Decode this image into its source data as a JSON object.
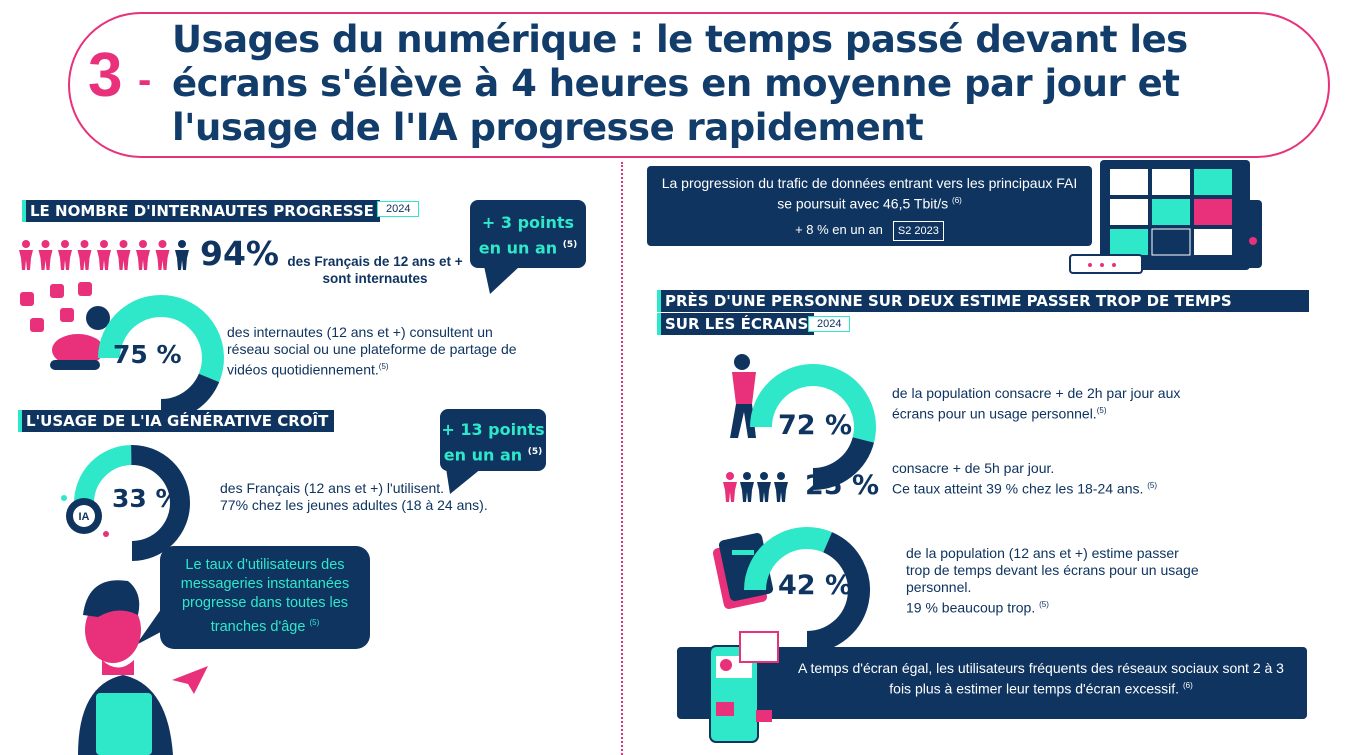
{
  "header": {
    "number": "3",
    "dash": "-",
    "title": "Usages du numérique : le temps passé devant les écrans s'élève à 4 heures en moyenne par jour et l'usage de l'IA progresse rapidement"
  },
  "internautes": {
    "heading": "LE NOMBRE D'INTERNAUTES PROGRESSE",
    "year": "2024",
    "pct": "94%",
    "pct_label": "des Français de 12 ans et + sont internautes",
    "callout": "+ 3 points en un an",
    "callout_note": "(5)",
    "icons_total": 9,
    "icons_highlighted": 8,
    "social_pct": "75 %",
    "social_value": 0.75,
    "social_label": "des internautes (12 ans et +) consultent un réseau social ou une plateforme de partage de vidéos quotidiennement.",
    "social_note": "(5)"
  },
  "ia": {
    "heading": "L'USAGE DE L'IA GÉNÉRATIVE CROÎT",
    "callout": "+ 13 points en un an",
    "callout_note": "(5)",
    "pct": "33 %",
    "value": 0.33,
    "label_line1": "des Français (12 ans et +) l'utilisent.",
    "label_line2": "77% chez les jeunes adultes (18 à 24 ans).",
    "icon_text": "IA"
  },
  "messagerie": {
    "bubble": "Le taux d'utilisateurs des messageries instantanées progresse dans toutes les tranches d'âge",
    "note": "(5)"
  },
  "trafic": {
    "text": "La progression du trafic de données entrant vers les principaux FAI se poursuit avec 46,5 Tbit/s",
    "note": "(6)",
    "growth": "+ 8 % en un an",
    "period": "S2 2023"
  },
  "ecrans": {
    "heading_line1": "PRÈS D'UNE PERSONNE SUR DEUX ESTIME PASSER TROP DE TEMPS",
    "heading_line2": "SUR LES ÉCRANS",
    "year": "2024",
    "stat1_pct": "72 %",
    "stat1_value": 0.72,
    "stat1_label": "de la population consacre + de 2h par jour aux écrans pour un usage personnel.",
    "stat1_note": "(5)",
    "stat2_pct": "25 %",
    "stat2_icons_total": 4,
    "stat2_icons_highlighted": 1,
    "stat2_line1": "consacre + de 5h par jour.",
    "stat2_line2": "Ce taux atteint 39 % chez les 18-24 ans.",
    "stat2_note": "(5)",
    "stat3_pct": "42 %",
    "stat3_value": 0.42,
    "stat3_label1": "de la population (12 ans et +) estime passer trop de temps devant les écrans pour un usage personnel.",
    "stat3_label2": "19 % beaucoup trop.",
    "stat3_note": "(5)"
  },
  "reseaux": {
    "text": "A temps d'écran égal, les utilisateurs fréquents des réseaux sociaux sont 2 à 3 fois plus à estimer leur temps d'écran excessif.",
    "note": "(6)"
  },
  "colors": {
    "navy": "#0f3460",
    "teal": "#2ee8c9",
    "pink": "#e8317a"
  }
}
